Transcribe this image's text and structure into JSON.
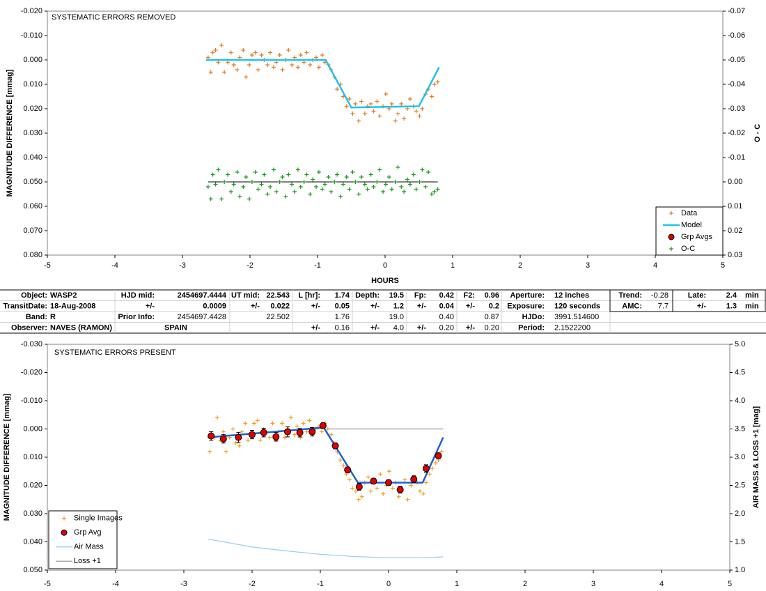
{
  "chart_data": [
    {
      "type": "combo",
      "title": "SYSTEMATIC ERRORS REMOVED",
      "x_label": "HOURS",
      "y_label": "MAGNITUDE DIFFERENCE [mmag]",
      "y2_label": "O - C",
      "xlim": [
        -5,
        5
      ],
      "xticks": [
        -5,
        -4,
        -3,
        -2,
        -1,
        0,
        1,
        2,
        3,
        4,
        5
      ],
      "ylim": [
        -0.02,
        0.08
      ],
      "y_inverted": true,
      "yticks": [
        {
          "value": -0.02,
          "label": "-0.020"
        },
        {
          "value": -0.01,
          "label": "-0.010"
        },
        {
          "value": 0,
          "label": "0.000"
        },
        {
          "value": 0.01,
          "label": "0.010"
        },
        {
          "value": 0.02,
          "label": "0.020"
        },
        {
          "value": 0.03,
          "label": "0.030"
        },
        {
          "value": 0.04,
          "label": "0.040"
        },
        {
          "value": 0.05,
          "label": "0.050"
        },
        {
          "value": 0.06,
          "label": "0.060"
        },
        {
          "value": 0.07,
          "label": "0.070"
        },
        {
          "value": 0.08,
          "label": "0.080"
        }
      ],
      "y2lim": [
        -0.07,
        0.03
      ],
      "y2_inverted": true,
      "y2ticks": [
        -0.07,
        -0.06,
        -0.05,
        -0.04,
        -0.03,
        -0.02,
        -0.01,
        {
          "value": 0,
          "label": "0.00"
        },
        0.01,
        0.02,
        0.03
      ],
      "legend": "lower right",
      "series": [
        {
          "name": "Data",
          "type": "scatter",
          "color": "#e5791f",
          "x": [
            -2.62,
            -2.58,
            -2.55,
            -2.51,
            -2.47,
            -2.42,
            -2.38,
            -2.33,
            -2.28,
            -2.24,
            -2.19,
            -2.15,
            -2.1,
            -2.06,
            -2.01,
            -1.97,
            -1.92,
            -1.88,
            -1.83,
            -1.79,
            -1.74,
            -1.7,
            -1.65,
            -1.61,
            -1.56,
            -1.52,
            -1.47,
            -1.43,
            -1.38,
            -1.34,
            -1.29,
            -1.25,
            -1.2,
            -1.16,
            -1.11,
            -1.07,
            -1.02,
            -0.98,
            -0.93,
            -0.89,
            -0.84,
            -0.8,
            -0.75,
            -0.71,
            -0.66,
            -0.62,
            -0.57,
            -0.53,
            -0.48,
            -0.44,
            -0.39,
            -0.35,
            -0.3,
            -0.26,
            -0.21,
            -0.17,
            -0.12,
            -0.08,
            -0.03,
            0.01,
            0.06,
            0.1,
            0.15,
            0.19,
            0.24,
            0.28,
            0.33,
            0.37,
            0.42,
            0.46,
            0.51,
            0.55,
            0.6,
            0.64,
            0.69,
            0.73,
            0.78
          ],
          "values": [
            -0.001,
            0.005,
            -0.003,
            -0.004,
            0.001,
            -0.006,
            0.005,
            0.001,
            -0.003,
            0.002,
            0.004,
            -0.001,
            -0.004,
            0.007,
            0.002,
            -0.002,
            -0.003,
            0.004,
            -0.002,
            0.0,
            0.002,
            -0.003,
            0.003,
            0.001,
            -0.002,
            0.004,
            0.0,
            -0.004,
            0.002,
            -0.001,
            0.003,
            -0.002,
            0.001,
            -0.003,
            0.002,
            0.0,
            -0.001,
            0.003,
            -0.002,
            0.001,
            0.002,
            0.004,
            0.007,
            0.012,
            0.01,
            0.015,
            0.019,
            0.016,
            0.022,
            0.018,
            0.025,
            0.017,
            0.022,
            0.019,
            0.018,
            0.021,
            0.017,
            0.023,
            0.019,
            0.014,
            0.02,
            0.018,
            0.025,
            0.022,
            0.018,
            0.024,
            0.02,
            0.016,
            0.019,
            0.021,
            0.023,
            0.02,
            0.014,
            0.012,
            0.015,
            0.01,
            0.009
          ]
        },
        {
          "name": "Model",
          "type": "line",
          "color": "#1fc3ef",
          "x": [
            -2.65,
            -0.88,
            -0.5,
            0.5,
            0.8
          ],
          "values": [
            0.0,
            0.0,
            0.0195,
            0.019,
            0.003
          ]
        },
        {
          "name": "Grp Avgs",
          "type": "errorbar",
          "color": "#e00000",
          "x": [],
          "values": [],
          "errors": []
        },
        {
          "name": "O-C",
          "type": "scatter",
          "color": "#1a9a1a",
          "axis": "y2",
          "x": [
            -2.62,
            -2.58,
            -2.55,
            -2.51,
            -2.47,
            -2.42,
            -2.38,
            -2.33,
            -2.28,
            -2.24,
            -2.19,
            -2.15,
            -2.1,
            -2.06,
            -2.01,
            -1.97,
            -1.92,
            -1.88,
            -1.83,
            -1.79,
            -1.74,
            -1.7,
            -1.65,
            -1.61,
            -1.56,
            -1.52,
            -1.47,
            -1.43,
            -1.38,
            -1.34,
            -1.29,
            -1.25,
            -1.2,
            -1.16,
            -1.11,
            -1.07,
            -1.02,
            -0.98,
            -0.93,
            -0.89,
            -0.84,
            -0.8,
            -0.75,
            -0.71,
            -0.66,
            -0.62,
            -0.57,
            -0.53,
            -0.48,
            -0.44,
            -0.39,
            -0.35,
            -0.3,
            -0.26,
            -0.21,
            -0.17,
            -0.12,
            -0.08,
            -0.03,
            0.01,
            0.06,
            0.1,
            0.15,
            0.19,
            0.24,
            0.28,
            0.33,
            0.37,
            0.42,
            0.46,
            0.51,
            0.55,
            0.6,
            0.64,
            0.69,
            0.73,
            0.78
          ],
          "values": [
            0.002,
            0.007,
            -0.003,
            0.001,
            -0.005,
            0.007,
            0.0,
            -0.003,
            0.004,
            0.001,
            -0.004,
            0.006,
            0.002,
            -0.002,
            0.007,
            0.0,
            -0.004,
            0.003,
            0.001,
            -0.003,
            0.005,
            0.002,
            -0.005,
            0.004,
            0.0,
            -0.002,
            0.006,
            -0.003,
            0.001,
            0.004,
            -0.005,
            0.002,
            0.0,
            -0.003,
            0.005,
            -0.001,
            0.002,
            -0.004,
            0.003,
            0.001,
            -0.002,
            0.004,
            0.0,
            -0.003,
            0.006,
            0.001,
            -0.002,
            0.003,
            -0.004,
            0.0,
            0.005,
            -0.002,
            0.001,
            0.003,
            -0.003,
            0.002,
            0.0,
            -0.005,
            0.004,
            0.001,
            -0.002,
            0.003,
            0.0,
            -0.006,
            0.002,
            0.004,
            -0.001,
            0.001,
            -0.003,
            0.003,
            0.0,
            -0.005,
            0.002,
            -0.004,
            0.005,
            0.004,
            0.003
          ]
        }
      ]
    },
    {
      "type": "combo",
      "title": "SYSTEMATIC ERRORS PRESENT",
      "y_label": "MAGNITUDE DIFFERENCE [mmag]",
      "y2_label": "AIR MASS & LOSS +1 [mag]",
      "xlim": [
        -5,
        5
      ],
      "xticks": [
        -5,
        -4,
        -3,
        -2,
        -1,
        0,
        1,
        2,
        3,
        4,
        5
      ],
      "ylim": [
        -0.03,
        0.05
      ],
      "y_inverted": true,
      "yticks": [
        {
          "value": -0.03,
          "label": "-0.030"
        },
        {
          "value": -0.02,
          "label": "-0.020"
        },
        {
          "value": -0.01,
          "label": "-0.010"
        },
        {
          "value": 0,
          "label": "0.000"
        },
        {
          "value": 0.01,
          "label": "0.010"
        },
        {
          "value": 0.02,
          "label": "0.020"
        },
        {
          "value": 0.03,
          "label": "0.030"
        },
        {
          "value": 0.04,
          "label": "0.040"
        },
        {
          "value": 0.05,
          "label": "0.050"
        }
      ],
      "y2lim": [
        1,
        5
      ],
      "y2ticks": [
        {
          "value": 1,
          "label": "1.0"
        },
        1.5,
        {
          "value": 2,
          "label": "2.0"
        },
        2.5,
        {
          "value": 3,
          "label": "3.0"
        },
        3.5,
        {
          "value": 4,
          "label": "4.0"
        },
        4.5,
        {
          "value": 5,
          "label": "5.0"
        }
      ],
      "legend": "lower left",
      "series": [
        {
          "name": "Single Images",
          "type": "scatter",
          "color": "#f0a020",
          "x": [
            -2.62,
            -2.58,
            -2.55,
            -2.51,
            -2.47,
            -2.42,
            -2.38,
            -2.33,
            -2.28,
            -2.24,
            -2.19,
            -2.15,
            -2.1,
            -2.06,
            -2.01,
            -1.97,
            -1.92,
            -1.88,
            -1.83,
            -1.79,
            -1.74,
            -1.7,
            -1.65,
            -1.61,
            -1.56,
            -1.52,
            -1.47,
            -1.43,
            -1.38,
            -1.34,
            -1.29,
            -1.25,
            -1.2,
            -1.16,
            -1.11,
            -1.07,
            -1.02,
            -0.98,
            -0.93,
            -0.89,
            -0.84,
            -0.8,
            -0.75,
            -0.71,
            -0.66,
            -0.62,
            -0.57,
            -0.53,
            -0.48,
            -0.44,
            -0.39,
            -0.35,
            -0.3,
            -0.26,
            -0.21,
            -0.17,
            -0.12,
            -0.08,
            -0.03,
            0.01,
            0.06,
            0.1,
            0.15,
            0.19,
            0.24,
            0.28,
            0.33,
            0.37,
            0.42,
            0.46,
            0.51,
            0.55,
            0.6,
            0.64,
            0.69,
            0.73,
            0.78
          ],
          "values": [
            0.008,
            0.002,
            0.003,
            -0.004,
            0.004,
            0.001,
            0.008,
            0.003,
            0.0,
            0.005,
            0.006,
            0.001,
            -0.002,
            0.004,
            0.002,
            -0.002,
            -0.003,
            0.004,
            0.0,
            0.001,
            0.003,
            -0.002,
            0.004,
            0.001,
            -0.002,
            0.003,
            0.0,
            -0.004,
            0.002,
            -0.001,
            0.003,
            -0.002,
            0.001,
            -0.003,
            0.002,
            0.0,
            -0.001,
            0.001,
            -0.002,
            0.0,
            0.002,
            0.005,
            0.008,
            0.011,
            0.013,
            0.016,
            0.018,
            0.021,
            0.022,
            0.025,
            0.024,
            0.019,
            0.017,
            0.022,
            0.018,
            0.021,
            0.016,
            0.023,
            0.02,
            0.015,
            0.021,
            0.019,
            0.024,
            0.022,
            0.018,
            0.025,
            0.02,
            0.017,
            0.019,
            0.022,
            0.023,
            0.019,
            0.016,
            0.014,
            0.012,
            0.011,
            0.008
          ]
        },
        {
          "type": "line",
          "color": "#1f5fd6",
          "x": [
            -2.65,
            -0.95,
            -0.45,
            0.5,
            0.8
          ],
          "values": [
            0.003,
            -0.0005,
            0.019,
            0.019,
            0.003
          ]
        },
        {
          "name": "Grp Avg",
          "type": "errorbar",
          "color": "#e00000",
          "x": [
            -2.6,
            -2.42,
            -2.2,
            -2.0,
            -1.83,
            -1.65,
            -1.48,
            -1.3,
            -1.12,
            -0.96,
            -0.78,
            -0.6,
            -0.43,
            -0.22,
            0.0,
            0.17,
            0.37,
            0.55,
            0.73
          ],
          "values": [
            0.0025,
            0.0035,
            0.003,
            0.002,
            0.0013,
            0.0028,
            0.001,
            0.0013,
            0.001,
            -0.0012,
            0.006,
            0.0145,
            0.0205,
            0.0185,
            0.019,
            0.0215,
            0.0178,
            0.014,
            0.0095
          ],
          "errors": [
            0.0015,
            0.0015,
            0.0018,
            0.0015,
            0.0015,
            0.0015,
            0.0018,
            0.0015,
            0.0015,
            0.001,
            0.001,
            0.001,
            0.0012,
            0.001,
            0.001,
            0.0012,
            0.0012,
            0.0013,
            0.001
          ]
        },
        {
          "name": "Air Mass",
          "type": "line",
          "color": "#8ecbf0",
          "axis": "y2",
          "x": [
            -2.65,
            -2.0,
            -1.5,
            -1.0,
            -0.5,
            0,
            0.5,
            0.8
          ],
          "values": [
            1.55,
            1.41,
            1.34,
            1.28,
            1.24,
            1.22,
            1.22,
            1.235
          ]
        },
        {
          "name": "Loss +1",
          "type": "line",
          "color": "#9a9a9a",
          "axis": "y2",
          "x": [
            -0.9,
            0.8
          ],
          "values": [
            3.5,
            3.5
          ]
        }
      ]
    }
  ],
  "table": {
    "rows": [
      [
        "Object:",
        "WASP2",
        "HJD mid:",
        "2454697.4444",
        "UT mid:",
        "22.543",
        "L [hr]:",
        "1.74",
        "Depth:",
        "19.5",
        "Fp:",
        "0.42",
        "F2:",
        "0.96",
        "Aperture:",
        "12 inches",
        "Trend:",
        "-0.28",
        "Late:",
        "2.4",
        "min"
      ],
      [
        "TransitDate:",
        "18-Aug-2008",
        "+/-",
        "0.0009",
        "+/-",
        "0.022",
        "+/-",
        "0.05",
        "+/-",
        "1.2",
        "+/-",
        "0.04",
        "+/-",
        "0.2",
        "Exposure:",
        "120 seconds",
        "AMC:",
        "7.7",
        "+/-",
        "1.3",
        "min"
      ],
      [
        "Band:",
        "R",
        "Prior Info:",
        "2454697.4428",
        null,
        "22.502",
        null,
        "1.76",
        null,
        "19.0",
        null,
        "0.40",
        null,
        "0.87",
        "HJDo:",
        "3991.514600",
        null,
        null,
        null,
        null,
        null
      ],
      [
        "Observer:",
        "NAVES (RAMON)",
        null,
        "SPAIN",
        null,
        null,
        "+/-",
        "0.16",
        "+/-",
        "4.0",
        "+/-",
        "0.20",
        "+/-",
        "0.20",
        "Period:",
        "2.1522200",
        null,
        null,
        null,
        null,
        null
      ]
    ]
  }
}
